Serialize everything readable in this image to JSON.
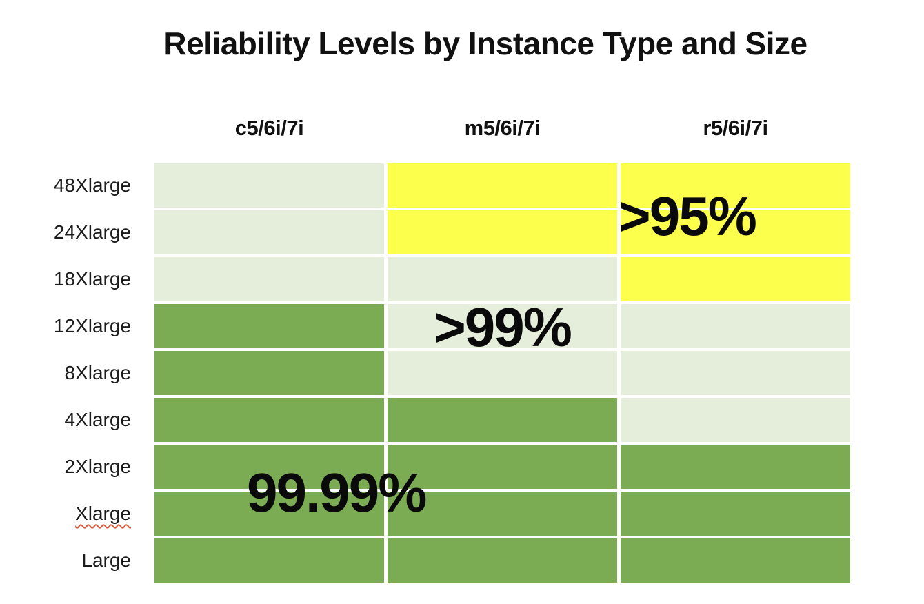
{
  "page": {
    "background": "#ffffff",
    "grid_line_color": "#ffffff",
    "text_color": "#111111",
    "spellcheck_squiggle_color": "#e0573f"
  },
  "chart_data": {
    "type": "heatmap",
    "title": "Reliability Levels by Instance Type and Size",
    "columns": [
      "c5/6i/7i",
      "m5/6i/7i",
      "r5/6i/7i"
    ],
    "rows": [
      "48Xlarge",
      "24Xlarge",
      "18Xlarge",
      "12Xlarge",
      "8Xlarge",
      "4Xlarge",
      "2Xlarge",
      "Xlarge",
      "Large"
    ],
    "spellcheck_underlined_row": "Xlarge",
    "levels": [
      {
        "label": ">95%",
        "color": "#fdff4d"
      },
      {
        "label": ">99%",
        "color": "#e5eeda"
      },
      {
        "label": "99.99%",
        "color": "#7bab53"
      }
    ],
    "cells": [
      [
        ">99%",
        ">95%",
        ">95%"
      ],
      [
        ">99%",
        ">95%",
        ">95%"
      ],
      [
        ">99%",
        ">99%",
        ">95%"
      ],
      [
        "99.99%",
        ">99%",
        ">99%"
      ],
      [
        "99.99%",
        ">99%",
        ">99%"
      ],
      [
        "99.99%",
        "99.99%",
        ">99%"
      ],
      [
        "99.99%",
        "99.99%",
        "99.99%"
      ],
      [
        "99.99%",
        "99.99%",
        "99.99%"
      ],
      [
        "99.99%",
        "99.99%",
        "99.99%"
      ]
    ],
    "annotations": [
      {
        "text": ">95%",
        "column": "r5/6i/7i",
        "rows": [
          "48Xlarge",
          "24Xlarge"
        ]
      },
      {
        "text": ">99%",
        "column": "m5/6i/7i",
        "rows": [
          "12Xlarge"
        ]
      },
      {
        "text": "99.99%",
        "column": "c5/6i/7i",
        "rows": [
          "2Xlarge",
          "Xlarge"
        ]
      }
    ],
    "legend": "none",
    "grid": "white separator lines between cells"
  }
}
